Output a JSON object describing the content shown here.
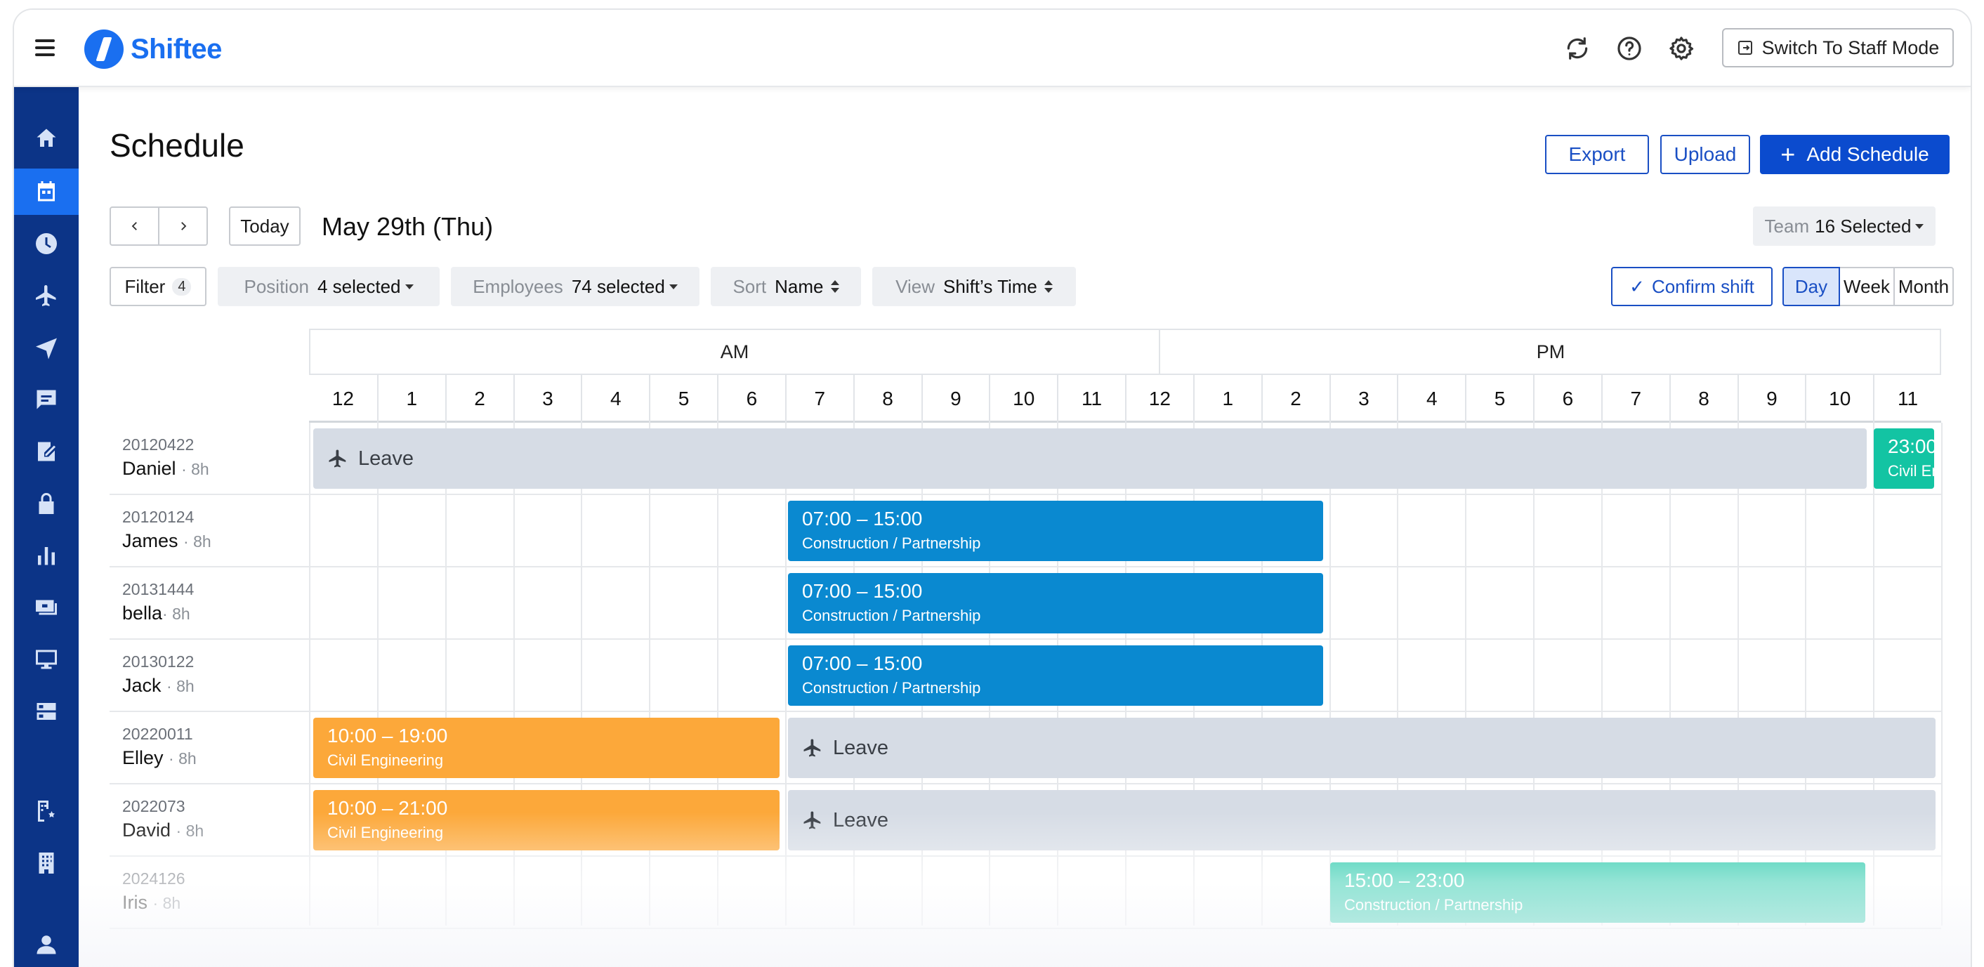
{
  "app": {
    "brand": "Shiftee",
    "switch_mode_label": "Switch To Staff Mode"
  },
  "page": {
    "title": "Schedule"
  },
  "actions": {
    "export": "Export",
    "upload": "Upload",
    "add_schedule": "Add Schedule"
  },
  "date_nav": {
    "today": "Today",
    "current_date": "May 29th (Thu)"
  },
  "team": {
    "label": "Team",
    "value": "16 Selected"
  },
  "filters": {
    "filter_label": "Filter",
    "filter_count": "4",
    "position": {
      "label": "Position",
      "value": "4 selected"
    },
    "employees": {
      "label": "Employees",
      "value": "74 selected"
    },
    "sort": {
      "label": "Sort",
      "value": "Name"
    },
    "view": {
      "label": "View",
      "value": "Shift’s Time"
    }
  },
  "confirm_shift": "Confirm shift",
  "view_modes": [
    "Day",
    "Week",
    "Month"
  ],
  "active_view": "Day",
  "timeline": {
    "am": "AM",
    "pm": "PM",
    "hours": [
      "12",
      "1",
      "2",
      "3",
      "4",
      "5",
      "6",
      "7",
      "8",
      "9",
      "10",
      "11",
      "12",
      "1",
      "2",
      "3",
      "4",
      "5",
      "6",
      "7",
      "8",
      "9",
      "10",
      "11"
    ]
  },
  "employees": [
    {
      "id": "20120422",
      "name": "Daniel",
      "hours": "· 8h"
    },
    {
      "id": "20120124",
      "name": "James",
      "hours": "· 8h"
    },
    {
      "id": "20131444",
      "name": "bella",
      "hours": "· 8h"
    },
    {
      "id": "20130122",
      "name": "Jack",
      "hours": "· 8h"
    },
    {
      "id": "20220011",
      "name": "Elley",
      "hours": "· 8h"
    },
    {
      "id": "2022073",
      "name": "David",
      "hours": "· 8h"
    },
    {
      "id": "2024126",
      "name": "Iris",
      "hours": "· 8h"
    }
  ],
  "blocks": {
    "daniel_leave": "Leave",
    "daniel_late": {
      "time": "23:00",
      "dept": "Civil Engineering"
    },
    "james": {
      "time": "07:00 – 15:00",
      "dept": "Construction /  Partnership"
    },
    "bella": {
      "time": "07:00 – 15:00",
      "dept": "Construction /  Partnership"
    },
    "jack": {
      "time": "07:00 – 15:00",
      "dept": "Construction /  Partnership"
    },
    "elley": {
      "time": "10:00 – 19:00",
      "dept": "Civil Engineering"
    },
    "elley_leave": "Leave",
    "david": {
      "time": "10:00 – 21:00",
      "dept": "Civil Engineering"
    },
    "david_leave": "Leave",
    "iris": {
      "time": "15:00 – 23:00",
      "dept": "Construction /  Partnership"
    }
  },
  "colors": {
    "primary": "#0b4bce",
    "sidebar": "#0c3487",
    "shift_blue": "#0a89d0",
    "shift_orange": "#fca83a",
    "shift_teal": "#13c4a3",
    "leave": "#d6dce5"
  },
  "sidebar_icons": [
    "home-icon",
    "calendar-icon",
    "clock-icon",
    "airplane-icon",
    "send-icon",
    "chat-icon",
    "note-icon",
    "lock-icon",
    "bar-chart-icon",
    "money-icon",
    "monitor-icon",
    "server-icon",
    "building-settings-icon",
    "building-icon",
    "user-icon"
  ]
}
